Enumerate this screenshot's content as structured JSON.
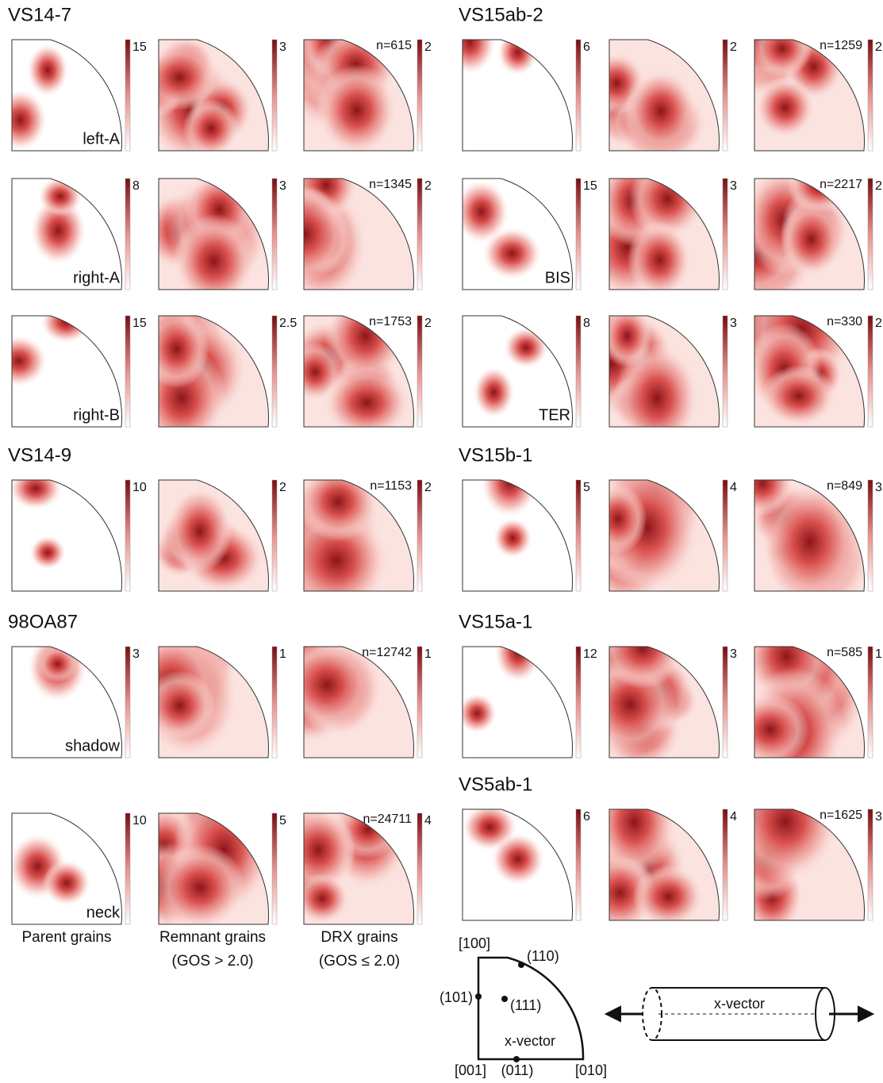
{
  "panels": [
    {
      "title": "VS14-7",
      "rows": [
        {
          "label": "left-A",
          "scales": [
            "15",
            "3",
            "2"
          ],
          "n": "n=615"
        },
        {
          "label": "right-A",
          "scales": [
            "8",
            "3",
            "2"
          ],
          "n": "n=1345"
        },
        {
          "label": "right-B",
          "scales": [
            "15",
            "2.5",
            "2"
          ],
          "n": "n=1753"
        }
      ]
    },
    {
      "title": "VS14-9",
      "rows": [
        {
          "scales": [
            "10",
            "2",
            "2"
          ],
          "n": "n=1153"
        }
      ]
    },
    {
      "title": "98OA87",
      "rows": [
        {
          "label": "shadow",
          "scales": [
            "3",
            "1",
            "1"
          ],
          "n": "n=12742"
        },
        {
          "label": "neck",
          "scales": [
            "10",
            "5",
            "4"
          ],
          "n": "n=24711"
        }
      ]
    },
    {
      "title": "VS15ab-2",
      "rows": [
        {
          "scales": [
            "6",
            "2",
            "2"
          ],
          "n": "n=1259"
        },
        {
          "label": "BIS",
          "scales": [
            "15",
            "3",
            "2"
          ],
          "n": "n=2217"
        },
        {
          "label": "TER",
          "scales": [
            "8",
            "3",
            "2"
          ],
          "n": "n=330"
        }
      ]
    },
    {
      "title": "VS15b-1",
      "rows": [
        {
          "scales": [
            "5",
            "4",
            "3"
          ],
          "n": "n=849"
        }
      ]
    },
    {
      "title": "VS15a-1",
      "rows": [
        {
          "scales": [
            "12",
            "3",
            "1"
          ],
          "n": "n=585"
        }
      ]
    },
    {
      "title": "VS5ab-1",
      "rows": [
        {
          "scales": [
            "6",
            "4",
            "3"
          ],
          "n": "n=1625"
        }
      ]
    }
  ],
  "column_labels": [
    "Parent grains",
    "Remnant grains",
    "(GOS > 2.0)",
    "DRX grains",
    "(GOS ≤ 2.0)"
  ],
  "key": {
    "top": "[100]",
    "p110": "(110)",
    "p101": "(101)",
    "p111": "(111)",
    "inside": "x-vector",
    "p001": "[001]",
    "p011": "(011)",
    "p010": "[010]",
    "cylinder": "x-vector"
  }
}
